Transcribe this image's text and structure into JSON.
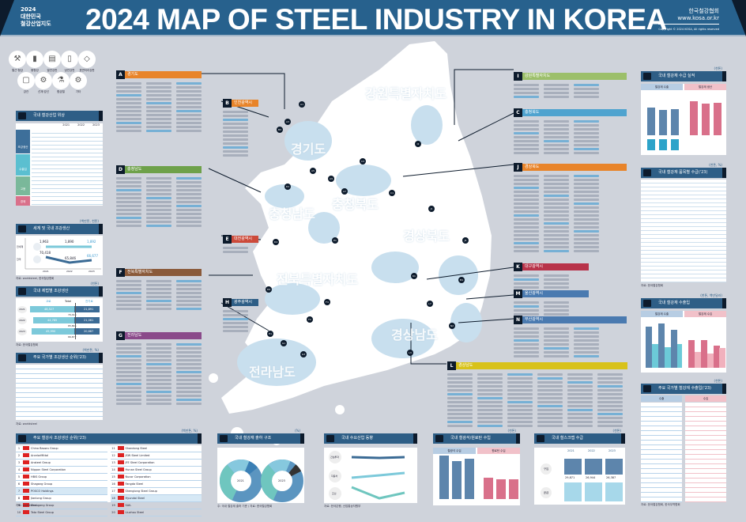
{
  "header": {
    "year": "2024",
    "sub1": "대한민국",
    "sub2": "철강산업지도",
    "title": "2024 MAP OF STEEL INDUSTRY IN KOREA",
    "org": "한국철강협회",
    "url": "www.kosa.or.kr",
    "copyright": "Copyright © 2024 KOSA, All rights reserved"
  },
  "legend": {
    "items": [
      "철근·형강",
      "봉형강",
      "열연강판",
      "냉연강판",
      "표면처리강판",
      "강관",
      "선재·강선",
      "합금철",
      "기타"
    ],
    "map_a": "본사",
    "map_b": "공장"
  },
  "regions": [
    {
      "letter": "A",
      "name": "경기도",
      "color": "#e8842a"
    },
    {
      "letter": "B",
      "name": "인천광역시",
      "color": "#e8842a"
    },
    {
      "letter": "C",
      "name": "충청북도",
      "color": "#4fa3cf"
    },
    {
      "letter": "D",
      "name": "충청남도",
      "color": "#6ea14a"
    },
    {
      "letter": "E",
      "name": "대전광역시",
      "color": "#cc4a3a"
    },
    {
      "letter": "F",
      "name": "전북특별자치도",
      "color": "#8a5a3a"
    },
    {
      "letter": "G",
      "name": "전라남도",
      "color": "#8a4a8a"
    },
    {
      "letter": "H",
      "name": "광주광역시",
      "color": "#2e5e86"
    },
    {
      "letter": "I",
      "name": "강원특별자치도",
      "color": "#9cbf6a"
    },
    {
      "letter": "J",
      "name": "경상북도",
      "color": "#e8842a"
    },
    {
      "letter": "K",
      "name": "대구광역시",
      "color": "#b8334a"
    },
    {
      "letter": "M",
      "name": "울산광역시",
      "color": "#4a7ab0"
    },
    {
      "letter": "N",
      "name": "부산광역시",
      "color": "#4a7ab0"
    },
    {
      "letter": "L",
      "name": "경상남도",
      "color": "#d8c21a"
    }
  ],
  "map_labels": [
    "강원특별자치도",
    "경기도",
    "충청북도",
    "충청남도",
    "경상북도",
    "전북특별자치도",
    "경상남도",
    "전라남도"
  ],
  "map_codes": [
    "A1",
    "A3",
    "A5",
    "B2",
    "A9",
    "A7",
    "C1",
    "C3",
    "D2",
    "D4",
    "D6",
    "E1",
    "F2",
    "F4",
    "G1",
    "G3",
    "H1",
    "I2",
    "J1",
    "J5",
    "K1",
    "N2",
    "L3",
    "L7",
    "M1"
  ],
  "panels": {
    "status": {
      "title": "국내 철강산업 위상",
      "years": [
        "2021",
        "2022",
        "2023"
      ],
      "groups": [
        "조강생산",
        "수출입",
        "고용",
        "경제"
      ]
    },
    "world": {
      "title": "세계 및 국내 조강생산",
      "unit": "(백만톤, 천톤)",
      "rows": [
        "전세계",
        "한국"
      ],
      "years": [
        "2021",
        "2022",
        "2023"
      ],
      "world": [
        "1,963",
        "1,890",
        "1,892"
      ],
      "korea": [
        "70,418",
        "65,846",
        "66,677"
      ],
      "source": "자료: worldsteel, 한국철강협회"
    },
    "method": {
      "title": "국내 제법별 조강생산",
      "unit": "(천톤)",
      "cols": [
        "고로",
        "Total",
        "전기로"
      ],
      "years": [
        "2021",
        "2022",
        "2023"
      ],
      "bf": [
        "48,527",
        "44,785",
        "45,990"
      ],
      "total": [
        "70,418",
        "65,846",
        "66,677"
      ],
      "eaf": [
        "21,891",
        "21,061",
        "20,687"
      ],
      "source": "자료: 한국철강협회"
    },
    "country": {
      "title": "주요 국가별 조강생산 순위('23)",
      "unit": "(백만톤, %)",
      "source": "자료: worldsteel"
    },
    "producers": {
      "title": "주요 철강사 조강생산 순위('23)",
      "unit": "(백만톤, %)",
      "left": [
        "China Baowu Group",
        "ArcelorMittal",
        "Ansteel Group",
        "Nippon Steel Corporation",
        "HBIS Group",
        "Shagang Group",
        "POSCO Holdings",
        "Jianlong Group",
        "Shougang Group",
        "Tata Steel Group"
      ],
      "right": [
        "Shandong Steel",
        "JSW Steel Limited",
        "JFE Steel Corporation",
        "Hunan Steel Group",
        "Nucor Corporation",
        "Fangda Steel",
        "Shenglong Steel Group",
        "Hyundai Steel",
        "SAIL",
        "Liuzhou Steel"
      ],
      "source": "자료: worldsteel"
    },
    "shipment": {
      "title": "국내 철강재 출하 구조",
      "unit": "(%)",
      "center": [
        "2021",
        "2023"
      ],
      "source": "주: 국내 철강재 출하 기준 / 자료: 한국철강협회"
    },
    "demand": {
      "title": "국내 수요산업 동향",
      "rows": [
        "건설투자",
        "자동차",
        "조선"
      ],
      "years": [
        "2021",
        "2022",
        "2023"
      ],
      "source": "자료: 한국은행, 산업통상자원부"
    },
    "ore": {
      "title": "국내 철광석/원료탄 수입",
      "unit": "(천톤)",
      "a": "철광석 수입",
      "b": "원료탄 수입",
      "years": [
        "2021",
        "2022",
        "2023"
      ],
      "source": "자료: 한국철강협회"
    },
    "scrap": {
      "title": "국내 철스크랩 수급",
      "unit": "(천톤)",
      "rows": [
        "구입",
        "공급"
      ],
      "years": [
        "2021",
        "2022",
        "2023"
      ],
      "total": [
        "29,871",
        "26,944",
        "26,387"
      ],
      "source": "자료: 한국철강협회"
    },
    "supply": {
      "title": "국내 철강재 수급 실적",
      "unit": "(천톤)",
      "a": "철강재 수출",
      "b": "철강재 생산",
      "years": [
        "2021",
        "2022",
        "2023"
      ],
      "source": "자료: 한국철강협회"
    },
    "items": {
      "title": "국내 철강재 품목별 수급('23)",
      "unit": "(천톤, %)",
      "source": "자료: 한국철강협회"
    },
    "trade": {
      "title": "국내 철강재 수출입",
      "unit": "(천톤, 백만달러)",
      "a": "철강재 수출",
      "b": "철강재 수입",
      "years": [
        "2021",
        "2022",
        "2023"
      ],
      "source": "자료: 한국철강협회"
    },
    "countrytrade": {
      "title": "주요 국가별 철강재 수출입('23)",
      "unit": "(천톤)",
      "a": "수출",
      "b": "수입",
      "source": "자료: 한국철강협회, 한국무역협회"
    }
  }
}
